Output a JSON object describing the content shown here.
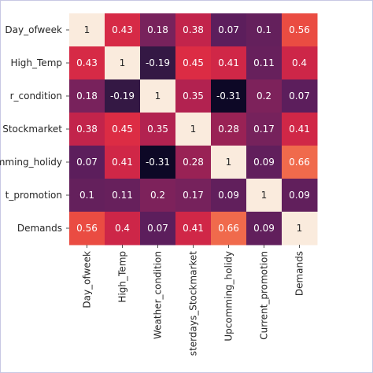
{
  "chart_data": {
    "type": "heatmap",
    "title": "",
    "xlabel": "",
    "ylabel": "",
    "rows": [
      "Day_ofweek",
      "High_Temp",
      "Weather_condition",
      "Yesterdays_Stockmarket",
      "Upcomming_holidy",
      "Current_promotion",
      "Demands"
    ],
    "row_labels_visible": [
      "Day_ofweek",
      "High_Temp",
      "r_condition",
      "Stockmarket",
      "mming_holidy",
      "t_promotion",
      "Demands"
    ],
    "columns": [
      "Day_ofweek",
      "High_Temp",
      "Weather_condition",
      "Yesterdays_Stockmarket",
      "Upcomming_holidy",
      "Current_promotion",
      "Demands"
    ],
    "column_labels_visible": [
      "Day_ofweek",
      "High_Temp",
      "Weather_condition",
      "sterdays_Stockmarket",
      "Upcomming_holidy",
      "Current_promotion",
      "Demands"
    ],
    "values": [
      [
        1,
        0.43,
        0.18,
        0.38,
        0.07,
        0.1,
        0.56
      ],
      [
        0.43,
        1,
        -0.19,
        0.45,
        0.41,
        0.11,
        0.4
      ],
      [
        0.18,
        -0.19,
        1,
        0.35,
        -0.31,
        0.2,
        0.07
      ],
      [
        0.38,
        0.45,
        0.35,
        1,
        0.28,
        0.17,
        0.41
      ],
      [
        0.07,
        0.41,
        -0.31,
        0.28,
        1,
        0.09,
        0.66
      ],
      [
        0.1,
        0.11,
        0.2,
        0.17,
        0.09,
        1,
        0.09
      ],
      [
        0.56,
        0.4,
        0.07,
        0.41,
        0.66,
        0.09,
        1
      ]
    ],
    "value_range": [
      -0.31,
      1
    ],
    "colormap": "rocket",
    "annotated": true,
    "grid": false,
    "legend": "none"
  }
}
